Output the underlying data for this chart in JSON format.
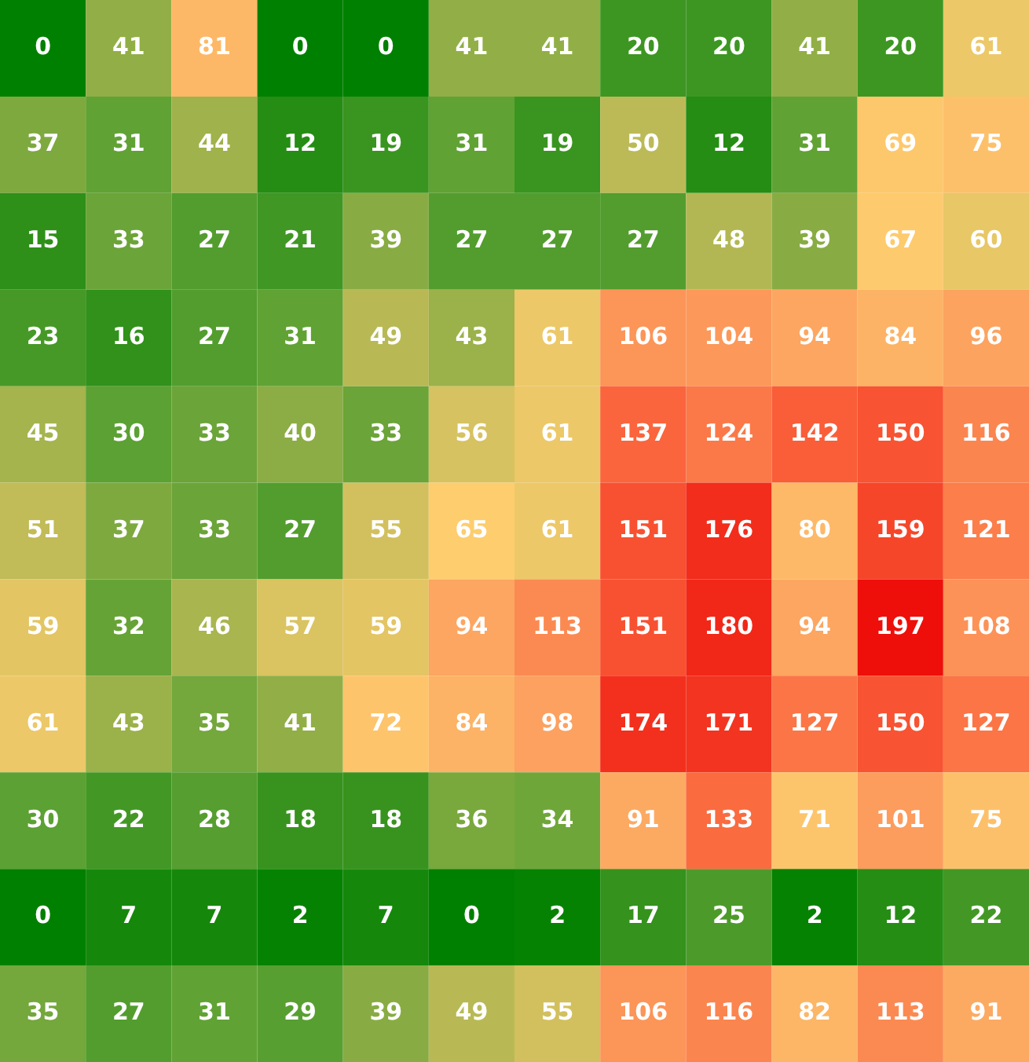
{
  "chart_data": {
    "type": "heatmap",
    "categories": [
      null,
      null,
      null,
      null,
      null,
      null,
      null,
      null,
      null,
      null,
      null,
      null
    ],
    "y_categories": [
      null,
      null,
      null,
      null,
      null,
      null,
      null,
      null,
      null,
      null,
      null
    ],
    "cells": [
      [
        0,
        41,
        81,
        0,
        0,
        41,
        41,
        20,
        20,
        41,
        20,
        61
      ],
      [
        37,
        31,
        44,
        12,
        19,
        31,
        19,
        50,
        12,
        31,
        69,
        75
      ],
      [
        15,
        33,
        27,
        21,
        39,
        27,
        27,
        27,
        48,
        39,
        67,
        60
      ],
      [
        23,
        16,
        27,
        31,
        49,
        43,
        61,
        106,
        104,
        94,
        84,
        96
      ],
      [
        45,
        30,
        33,
        40,
        33,
        56,
        61,
        137,
        124,
        142,
        150,
        116
      ],
      [
        51,
        37,
        33,
        27,
        55,
        65,
        61,
        151,
        176,
        80,
        159,
        121
      ],
      [
        59,
        32,
        46,
        57,
        59,
        94,
        113,
        151,
        180,
        94,
        197,
        108
      ],
      [
        61,
        43,
        35,
        41,
        72,
        84,
        98,
        174,
        171,
        127,
        150,
        127
      ],
      [
        30,
        22,
        28,
        18,
        18,
        36,
        34,
        91,
        133,
        71,
        101,
        75
      ],
      [
        0,
        7,
        7,
        2,
        7,
        0,
        2,
        17,
        25,
        2,
        12,
        22
      ],
      [
        35,
        27,
        31,
        29,
        39,
        49,
        55,
        106,
        116,
        82,
        113,
        91
      ]
    ],
    "data_labels": true
  }
}
